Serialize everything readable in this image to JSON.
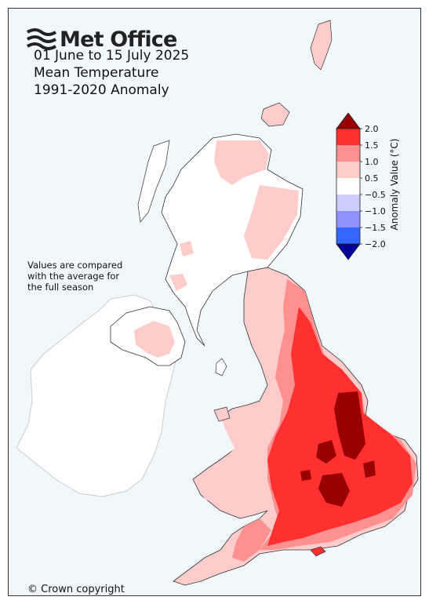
{
  "header": {
    "brand": "Met Office",
    "line1": "01 June to 15 July 2025",
    "line2": "Mean Temperature",
    "line3": "1991-2020 Anomaly"
  },
  "note": [
    "Values are compared",
    "with the average for",
    "the full season"
  ],
  "copyright": "© Crown copyright",
  "legend": {
    "title": "Anomaly Value (°C)",
    "ticks": [
      "2.0",
      "1.5",
      "1.0",
      "0.5",
      "−0.5",
      "−1.0",
      "−1.5",
      "−2.0"
    ],
    "bands": [
      {
        "color": "#ff3030"
      },
      {
        "color": "#ff9090"
      },
      {
        "color": "#ffcccc"
      },
      {
        "color": "#ffffff"
      },
      {
        "color": "#ccccff"
      },
      {
        "color": "#9090ff"
      },
      {
        "color": "#3366ff"
      }
    ],
    "over_color": "#990000",
    "under_color": "#000099"
  },
  "colors": {
    "sea": "#f0f8fb",
    "ireland": "#ffffff",
    "neutral": "#ffffff",
    "light": "#ffcccc",
    "medium": "#ff9090",
    "strong": "#ff3030",
    "extreme": "#990000"
  }
}
